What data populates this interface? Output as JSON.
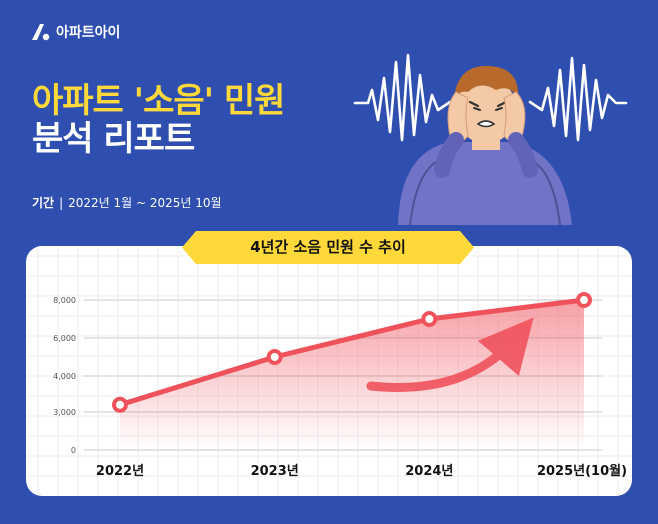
{
  "brand": {
    "name": "아파트아이",
    "color": "#ffffff"
  },
  "header": {
    "title_line1": "아파트 '소음' 민원",
    "title_line2": "분석 리포트",
    "period_label": "기간",
    "period_separator": "|",
    "period_value": "2022년 1월 ~ 2025년 10월"
  },
  "illustration": {
    "icon": "covering-ears-person-icon"
  },
  "colors": {
    "background": "#2f4fb0",
    "accent": "#ffd93a",
    "line": "#f0525c",
    "grid": "#eeeeee"
  },
  "chart_data": {
    "type": "line",
    "title": "4년간 소음 민원 수 추이",
    "categories": [
      "2022년",
      "2023년",
      "2024년",
      "2025년(10월)"
    ],
    "y_tick_values": [
      0,
      3000,
      4000,
      6000,
      8000
    ],
    "y_tick_labels": [
      "0",
      "3,000",
      "4,000",
      "6,000",
      "8,000"
    ],
    "y_axis_break": true,
    "series": [
      {
        "values": [
          3200,
          5000,
          7000,
          8200
        ]
      }
    ],
    "grid": true,
    "annotation": "upward-arrow"
  }
}
